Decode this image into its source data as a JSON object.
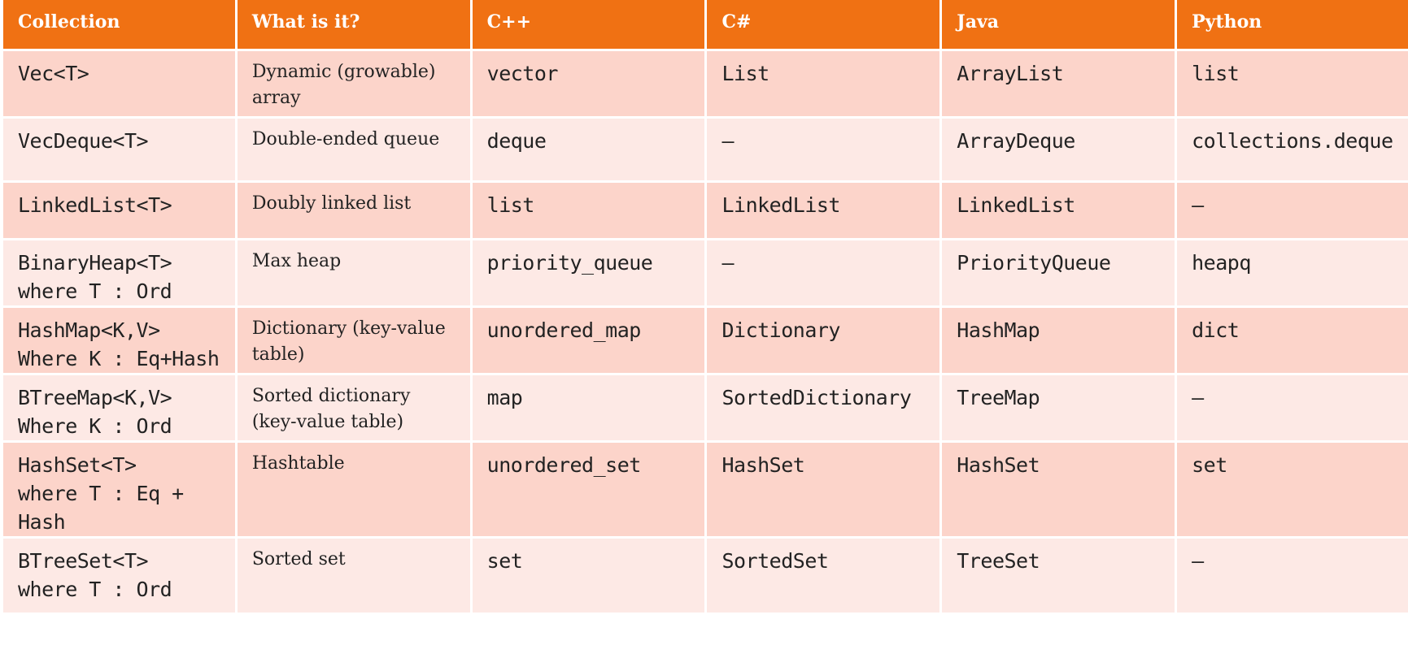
{
  "table": {
    "headers": [
      "Collection",
      "What is it?",
      "C++",
      "C#",
      "Java",
      "Python"
    ],
    "rows": [
      {
        "collection": [
          "Vec<T>"
        ],
        "description": "Dynamic (growable) array",
        "cpp": "vector",
        "csharp": "List",
        "java": "ArrayList",
        "python": "list"
      },
      {
        "collection": [
          "VecDeque<T>"
        ],
        "description": "Double-ended queue",
        "cpp": "deque",
        "csharp": "—",
        "java": "ArrayDeque",
        "python": "collections.deque"
      },
      {
        "collection": [
          "LinkedList<T>"
        ],
        "description": "Doubly linked list",
        "cpp": "list",
        "csharp": "LinkedList",
        "java": "LinkedList",
        "python": "—"
      },
      {
        "collection": [
          "BinaryHeap<T>",
          "where T : Ord"
        ],
        "description": "Max heap",
        "cpp": "priority_queue",
        "csharp": "—",
        "java": "PriorityQueue",
        "python": "heapq"
      },
      {
        "collection": [
          "HashMap<K,V>",
          "Where K : Eq+Hash"
        ],
        "description": "Dictionary (key-value table)",
        "cpp": "unordered_map",
        "csharp": "Dictionary",
        "java": "HashMap",
        "python": "dict"
      },
      {
        "collection": [
          "BTreeMap<K,V>",
          "Where K : Ord"
        ],
        "description": "Sorted dictionary (key-value table)",
        "cpp": "map",
        "csharp": "SortedDictionary",
        "java": "TreeMap",
        "python": "—"
      },
      {
        "collection": [
          "HashSet<T>",
          "where T : Eq +",
          "Hash"
        ],
        "description": "Hashtable",
        "cpp": "unordered_set",
        "csharp": "HashSet",
        "java": "HashSet",
        "python": "set"
      },
      {
        "collection": [
          "BTreeSet<T>",
          "where T : Ord"
        ],
        "description": "Sorted set",
        "cpp": "set",
        "csharp": "SortedSet",
        "java": "TreeSet",
        "python": "—"
      }
    ]
  },
  "colors": {
    "header_bg": "#f07113",
    "header_text": "#ffffff",
    "row_dark": "#fcd4ca",
    "row_light": "#fde9e5",
    "body_text": "#222222"
  }
}
